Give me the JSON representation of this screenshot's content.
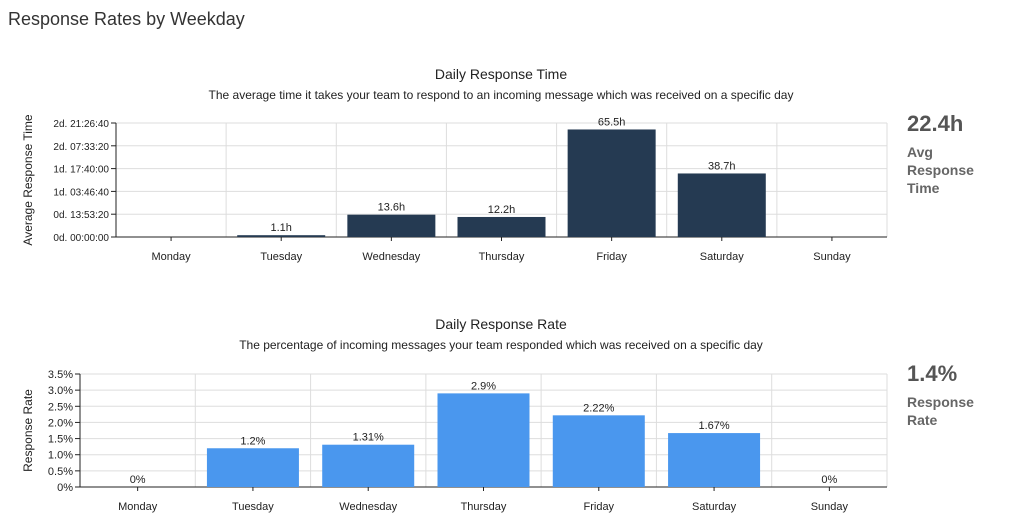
{
  "page": {
    "title": "Response Rates by Weekday"
  },
  "chart_data": [
    {
      "type": "bar",
      "title": "Daily Response Time",
      "subtitle": "The average time it takes your team to respond to an incoming message which was received on a specific day",
      "xlabel": "",
      "ylabel": "Average Response Time",
      "categories": [
        "Monday",
        "Tuesday",
        "Wednesday",
        "Thursday",
        "Friday",
        "Saturday",
        "Sunday"
      ],
      "values": [
        0,
        1.1,
        13.6,
        12.2,
        65.5,
        38.7,
        0
      ],
      "data_labels": [
        "",
        "1.1h",
        "13.6h",
        "12.2h",
        "65.5h",
        "38.7h",
        ""
      ],
      "value_unit": "hours",
      "yticks": [
        "0d. 00:00:00",
        "0d. 13:53:20",
        "1d. 03:46:40",
        "1d. 17:40:00",
        "2d. 07:33:20",
        "2d. 21:26:40"
      ],
      "ylim": [
        0,
        69.44
      ],
      "grid": true,
      "bar_color": "#253a52"
    },
    {
      "type": "bar",
      "title": "Daily Response Rate",
      "subtitle": "The percentage of incoming messages your team responded which was received on a specific day",
      "xlabel": "",
      "ylabel": "Response Rate",
      "categories": [
        "Monday",
        "Tuesday",
        "Wednesday",
        "Thursday",
        "Friday",
        "Saturday",
        "Sunday"
      ],
      "values": [
        0,
        1.2,
        1.31,
        2.9,
        2.22,
        1.67,
        0
      ],
      "data_labels": [
        "0%",
        "1.2%",
        "1.31%",
        "2.9%",
        "2.22%",
        "1.67%",
        "0%"
      ],
      "value_unit": "%",
      "yticks": [
        "0%",
        "0.5%",
        "1.0%",
        "1.5%",
        "2.0%",
        "2.5%",
        "3.0%",
        "3.5%"
      ],
      "ylim": [
        0,
        3.5
      ],
      "grid": true,
      "bar_color": "#4a97ee"
    }
  ],
  "kpis": [
    {
      "value": "22.4h",
      "label": "Avg Response Time"
    },
    {
      "value": "1.4%",
      "label": "Response Rate"
    }
  ]
}
